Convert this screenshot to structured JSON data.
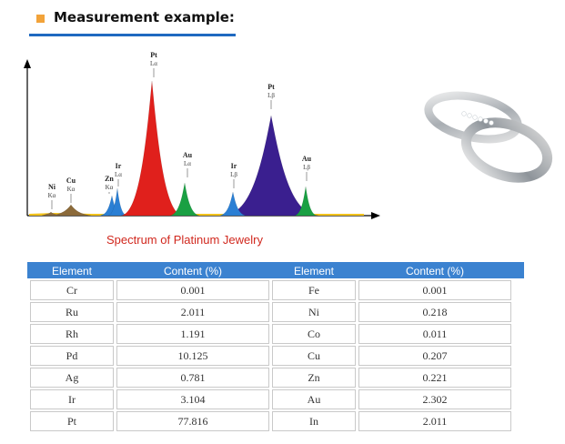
{
  "header": {
    "title": "Measurement example:"
  },
  "caption": "Spectrum of  Platinum Jewelry",
  "chart_data": {
    "type": "area",
    "title": "Spectrum of  Platinum Jewelry",
    "xlabel": "",
    "ylabel": "",
    "peaks": [
      {
        "element": "Ni",
        "line": "Kα",
        "color": "#8b6a3a"
      },
      {
        "element": "Cu",
        "line": "Kα",
        "color": "#8b6a3a"
      },
      {
        "element": "Zn",
        "line": "Kα",
        "color": "#2a7fd4"
      },
      {
        "element": "Ir",
        "line": "Lα",
        "color": "#2a7fd4"
      },
      {
        "element": "Pt",
        "line": "Lα",
        "color": "#e0201c"
      },
      {
        "element": "Au",
        "line": "Lα",
        "color": "#1aa043"
      },
      {
        "element": "Ir",
        "line": "Lβ",
        "color": "#2a7fd4"
      },
      {
        "element": "Pt",
        "line": "Lβ",
        "color": "#3a1f8f"
      },
      {
        "element": "Au",
        "line": "Lβ",
        "color": "#1aa043"
      }
    ]
  },
  "table": {
    "headers": [
      "Element",
      "Content (%)",
      "Element",
      "Content (%)"
    ],
    "rows": [
      [
        "Cr",
        "0.001",
        "Fe",
        "0.001"
      ],
      [
        "Ru",
        "2.011",
        "Ni",
        "0.218"
      ],
      [
        "Rh",
        "1.191",
        "Co",
        "0.011"
      ],
      [
        "Pd",
        "10.125",
        "Cu",
        "0.207"
      ],
      [
        "Ag",
        "0.781",
        "Zn",
        "0.221"
      ],
      [
        "Ir",
        "3.104",
        "Au",
        "2.302"
      ],
      [
        "Pt",
        "77.816",
        "In",
        "2.011"
      ]
    ]
  }
}
